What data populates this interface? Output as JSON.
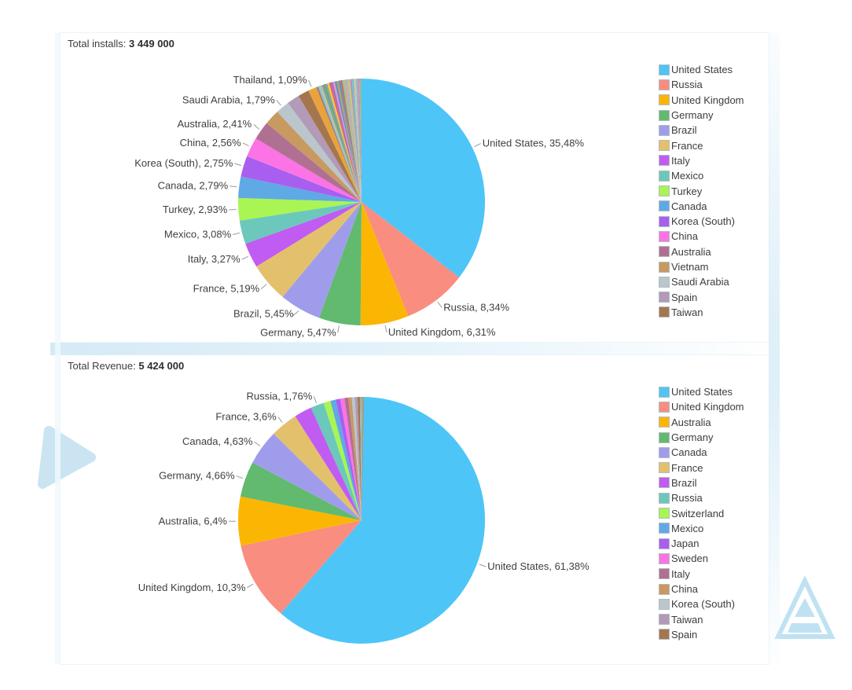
{
  "chart_data": [
    {
      "type": "pie",
      "title_label": "Total installs:",
      "total_value": "3 449 000",
      "legend_position": "right",
      "slices": [
        {
          "name": "United States",
          "value": 35.48,
          "display_label": "United States, 35,48%",
          "color": "#4EC5F7",
          "labeled": true
        },
        {
          "name": "Russia",
          "value": 8.34,
          "display_label": "Russia, 8,34%",
          "color": "#F98D80",
          "labeled": true
        },
        {
          "name": "United Kingdom",
          "value": 6.31,
          "display_label": "United Kingdom, 6,31%",
          "color": "#FBB604",
          "labeled": true
        },
        {
          "name": "Germany",
          "value": 5.47,
          "display_label": "Germany, 5,47%",
          "color": "#61BA6D",
          "labeled": true
        },
        {
          "name": "Brazil",
          "value": 5.45,
          "display_label": "Brazil, 5,45%",
          "color": "#9F9DEB",
          "labeled": true
        },
        {
          "name": "France",
          "value": 5.19,
          "display_label": "France, 5,19%",
          "color": "#E3C16C",
          "labeled": true
        },
        {
          "name": "Italy",
          "value": 3.27,
          "display_label": "Italy, 3,27%",
          "color": "#C05CF2",
          "labeled": true
        },
        {
          "name": "Mexico",
          "value": 3.08,
          "display_label": "Mexico, 3,08%",
          "color": "#6CC8BB",
          "labeled": true
        },
        {
          "name": "Turkey",
          "value": 2.93,
          "display_label": "Turkey, 2,93%",
          "color": "#A8F554",
          "labeled": true
        },
        {
          "name": "Canada",
          "value": 2.79,
          "display_label": "Canada, 2,79%",
          "color": "#5FA9E5",
          "labeled": true
        },
        {
          "name": "Korea (South)",
          "value": 2.75,
          "display_label": "Korea (South), 2,75%",
          "color": "#A85FF0",
          "labeled": true
        },
        {
          "name": "China",
          "value": 2.56,
          "display_label": "China, 2,56%",
          "color": "#FC73E5",
          "labeled": true
        },
        {
          "name": "Australia",
          "value": 2.41,
          "display_label": "Australia, 2,41%",
          "color": "#B07092",
          "labeled": true
        },
        {
          "name": "Vietnam",
          "value": 2.0,
          "color": "#C89961",
          "labeled": false,
          "estimated": true
        },
        {
          "name": "Saudi Arabia",
          "value": 1.79,
          "display_label": "Saudi Arabia, 1,79%",
          "color": "#BAC6CC",
          "labeled": true
        },
        {
          "name": "Spain",
          "value": 1.65,
          "color": "#B29AB8",
          "labeled": false,
          "estimated": true
        },
        {
          "name": "Taiwan",
          "value": 1.45,
          "color": "#A5764D",
          "labeled": false,
          "estimated": true
        },
        {
          "name": "Thailand",
          "value": 1.09,
          "display_label": "Thailand, 1,09%",
          "color": "#E8A33D",
          "labeled": true
        }
      ],
      "others": {
        "value": 5.99,
        "count": 24
      },
      "legend": [
        {
          "label": "United States",
          "color": "#4EC5F7"
        },
        {
          "label": "Russia",
          "color": "#F98D80"
        },
        {
          "label": "United Kingdom",
          "color": "#FBB604"
        },
        {
          "label": "Germany",
          "color": "#61BA6D"
        },
        {
          "label": "Brazil",
          "color": "#9F9DEB"
        },
        {
          "label": "France",
          "color": "#E3C16C"
        },
        {
          "label": "Italy",
          "color": "#C05CF2"
        },
        {
          "label": "Mexico",
          "color": "#6CC8BB"
        },
        {
          "label": "Turkey",
          "color": "#A8F554"
        },
        {
          "label": "Canada",
          "color": "#5FA9E5"
        },
        {
          "label": "Korea (South)",
          "color": "#A85FF0"
        },
        {
          "label": "China",
          "color": "#FC73E5"
        },
        {
          "label": "Australia",
          "color": "#B07092"
        },
        {
          "label": "Vietnam",
          "color": "#C89961"
        },
        {
          "label": "Saudi Arabia",
          "color": "#BAC6CC"
        },
        {
          "label": "Spain",
          "color": "#B29AB8"
        },
        {
          "label": "Taiwan",
          "color": "#A5764D"
        }
      ]
    },
    {
      "type": "pie",
      "title_label": "Total Revenue:",
      "total_value": "5 424 000",
      "legend_position": "right",
      "slices": [
        {
          "name": "United States",
          "value": 61.38,
          "display_label": "United States, 61,38%",
          "color": "#4EC5F7",
          "labeled": true
        },
        {
          "name": "United Kingdom",
          "value": 10.3,
          "display_label": "United Kingdom, 10,3%",
          "color": "#F98D80",
          "labeled": true
        },
        {
          "name": "Australia",
          "value": 6.4,
          "display_label": "Australia, 6,4%",
          "color": "#FBB604",
          "labeled": true
        },
        {
          "name": "Germany",
          "value": 4.66,
          "display_label": "Germany, 4,66%",
          "color": "#61BA6D",
          "labeled": true
        },
        {
          "name": "Canada",
          "value": 4.63,
          "display_label": "Canada, 4,63%",
          "color": "#9F9DEB",
          "labeled": true
        },
        {
          "name": "France",
          "value": 3.6,
          "display_label": "France, 3,6%",
          "color": "#E3C16C",
          "labeled": true
        },
        {
          "name": "Brazil",
          "value": 2.3,
          "color": "#C05CF2",
          "labeled": false,
          "estimated": true
        },
        {
          "name": "Russia",
          "value": 1.76,
          "display_label": "Russia, 1,76%",
          "color": "#6CC8BB",
          "labeled": true
        },
        {
          "name": "Switzerland",
          "value": 0.9,
          "color": "#A8F554",
          "labeled": false,
          "estimated": true
        },
        {
          "name": "Mexico",
          "value": 0.7,
          "color": "#5FA9E5",
          "labeled": false,
          "estimated": true
        },
        {
          "name": "Japan",
          "value": 0.6,
          "color": "#A85FF0",
          "labeled": false,
          "estimated": true
        },
        {
          "name": "Sweden",
          "value": 0.55,
          "color": "#FC73E5",
          "labeled": false,
          "estimated": true
        },
        {
          "name": "Italy",
          "value": 0.5,
          "color": "#B07092",
          "labeled": false,
          "estimated": true
        },
        {
          "name": "China",
          "value": 0.45,
          "color": "#C89961",
          "labeled": false,
          "estimated": true
        },
        {
          "name": "Korea (South)",
          "value": 0.4,
          "color": "#BAC6CC",
          "labeled": false,
          "estimated": true
        },
        {
          "name": "Taiwan",
          "value": 0.35,
          "color": "#B29AB8",
          "labeled": false,
          "estimated": true
        },
        {
          "name": "Spain",
          "value": 0.3,
          "color": "#A5764D",
          "labeled": false,
          "estimated": true
        }
      ],
      "others": {
        "value": 0.52,
        "count": 8
      },
      "legend": [
        {
          "label": "United States",
          "color": "#4EC5F7"
        },
        {
          "label": "United Kingdom",
          "color": "#F98D80"
        },
        {
          "label": "Australia",
          "color": "#FBB604"
        },
        {
          "label": "Germany",
          "color": "#61BA6D"
        },
        {
          "label": "Canada",
          "color": "#9F9DEB"
        },
        {
          "label": "France",
          "color": "#E3C16C"
        },
        {
          "label": "Brazil",
          "color": "#C05CF2"
        },
        {
          "label": "Russia",
          "color": "#6CC8BB"
        },
        {
          "label": "Switzerland",
          "color": "#A8F554"
        },
        {
          "label": "Mexico",
          "color": "#5FA9E5"
        },
        {
          "label": "Japan",
          "color": "#A85FF0"
        },
        {
          "label": "Sweden",
          "color": "#FC73E5"
        },
        {
          "label": "Italy",
          "color": "#B07092"
        },
        {
          "label": "China",
          "color": "#C89961"
        },
        {
          "label": "Korea (South)",
          "color": "#BAC6CC"
        },
        {
          "label": "Taiwan",
          "color": "#B29AB8"
        },
        {
          "label": "Spain",
          "color": "#A5764D"
        }
      ]
    }
  ],
  "sliver_colors": [
    "#A97B68",
    "#7FC4E8",
    "#C8BE8F",
    "#6FA8A0",
    "#74A06B",
    "#8B9DB5",
    "#F2D12E",
    "#E06666",
    "#9B6BC8",
    "#EE8FD0",
    "#5B8FC8",
    "#B5A06B",
    "#6B8FA8",
    "#C86B6B",
    "#8FC89B",
    "#D0A88F",
    "#A8B5C8",
    "#C8C86B",
    "#B58FC8",
    "#6BC8C8",
    "#D0C8A0",
    "#9FB3C8",
    "#C98FB8",
    "#8FBF9F"
  ],
  "decor": {
    "triangle_color": "#CBE4F2",
    "logo_color": "#BFE2F3",
    "panel_glow_color": "#D6EBF7"
  }
}
